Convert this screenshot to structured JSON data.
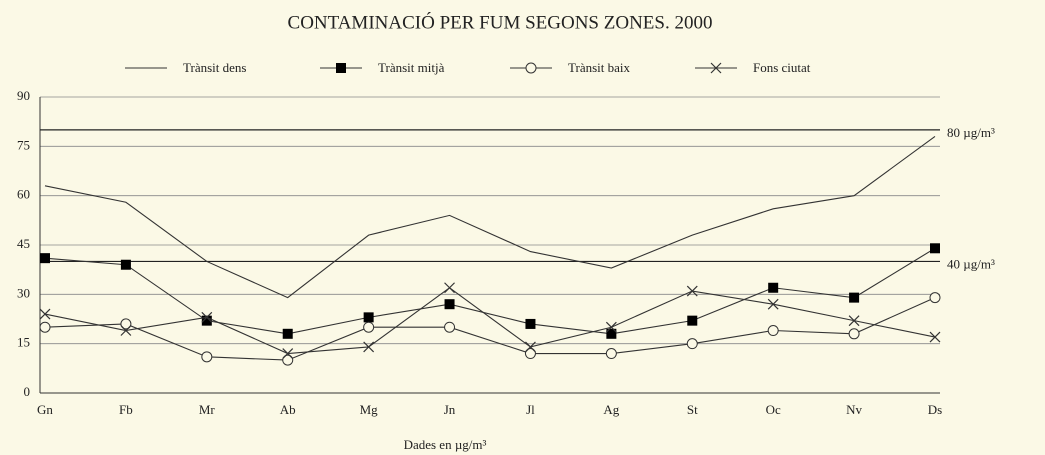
{
  "chart_data": {
    "type": "line",
    "title": "CONTAMINACIÓ PER FUM SEGONS ZONES. 2000",
    "x_label": "Dades en µg/m³",
    "categories": [
      "Gn",
      "Fb",
      "Mr",
      "Ab",
      "Mg",
      "Jn",
      "Jl",
      "Ag",
      "St",
      "Oc",
      "Nv",
      "Ds"
    ],
    "series": [
      {
        "name": "Trànsit dens",
        "color": "#333333",
        "marker": "none",
        "values": [
          63,
          58,
          40,
          29,
          48,
          54,
          43,
          38,
          48,
          56,
          60,
          78
        ]
      },
      {
        "name": "Trànsit mitjà",
        "color": "#333333",
        "marker": "square",
        "values": [
          41,
          39,
          22,
          18,
          23,
          27,
          21,
          18,
          22,
          32,
          29,
          44
        ]
      },
      {
        "name": "Trànsit baix",
        "color": "#333333",
        "marker": "circle",
        "values": [
          20,
          21,
          11,
          10,
          20,
          20,
          12,
          12,
          15,
          19,
          18,
          29
        ]
      },
      {
        "name": "Fons ciutat",
        "color": "#333333",
        "marker": "x",
        "values": [
          24,
          19,
          23,
          12,
          14,
          32,
          14,
          20,
          31,
          27,
          22,
          17
        ]
      }
    ],
    "reference_lines": [
      {
        "value": 80,
        "label": "80 µg/m³"
      },
      {
        "value": 40,
        "label": "40 µg/m³"
      }
    ],
    "ylim": [
      0,
      90
    ],
    "yticks": [
      0,
      15,
      30,
      45,
      60,
      75,
      90
    ],
    "grid": true
  }
}
